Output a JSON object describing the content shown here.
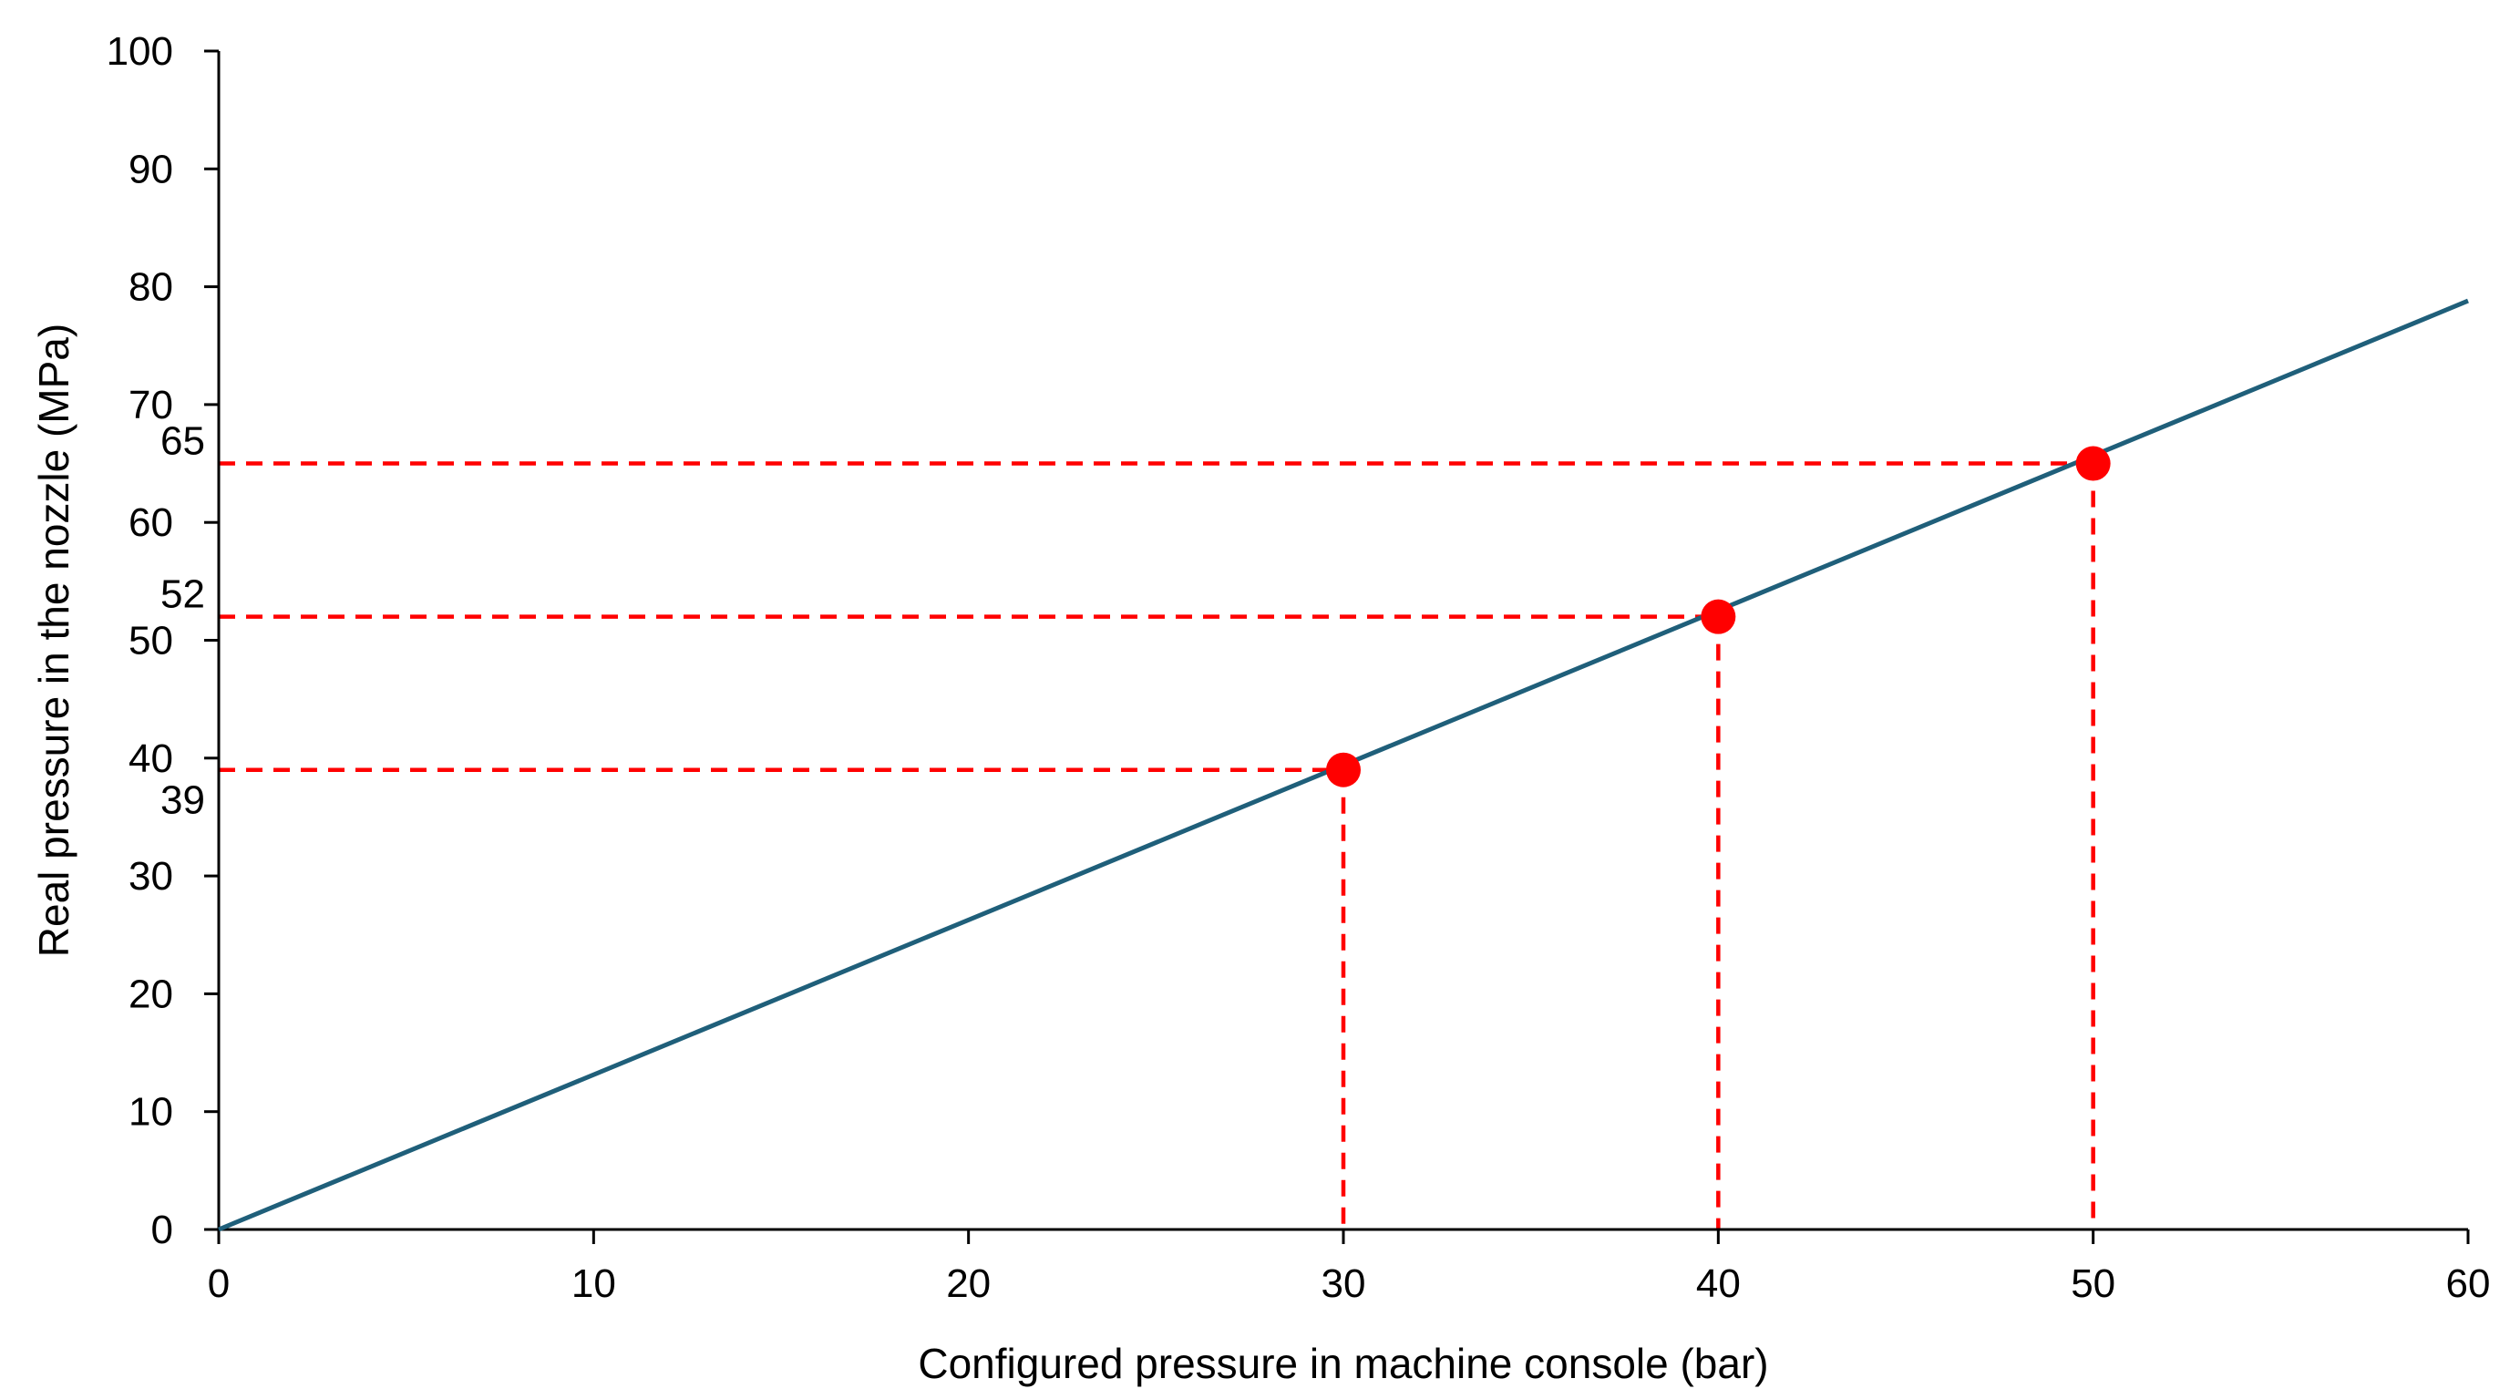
{
  "chart_data": {
    "type": "line",
    "title": "",
    "xlabel": "Configured pressure in machine console (bar)",
    "ylabel": "Real pressure in the nozzle (MPa)",
    "xlim": [
      0,
      60
    ],
    "ylim": [
      0,
      100
    ],
    "x_ticks": [
      0,
      10,
      20,
      30,
      40,
      50,
      60
    ],
    "y_ticks": [
      0,
      10,
      20,
      30,
      40,
      50,
      60,
      70,
      80,
      90,
      100
    ],
    "grid": false,
    "legend": "none",
    "series": [
      {
        "x": [
          0,
          60
        ],
        "y": [
          0,
          78.8
        ],
        "color": "#1f5f7a"
      }
    ],
    "highlighted_points": [
      {
        "x": 30,
        "y": 39,
        "label": "39"
      },
      {
        "x": 40,
        "y": 52,
        "label": "52"
      },
      {
        "x": 50,
        "y": 65,
        "label": "65"
      }
    ],
    "highlight_color": "#ff0000"
  }
}
